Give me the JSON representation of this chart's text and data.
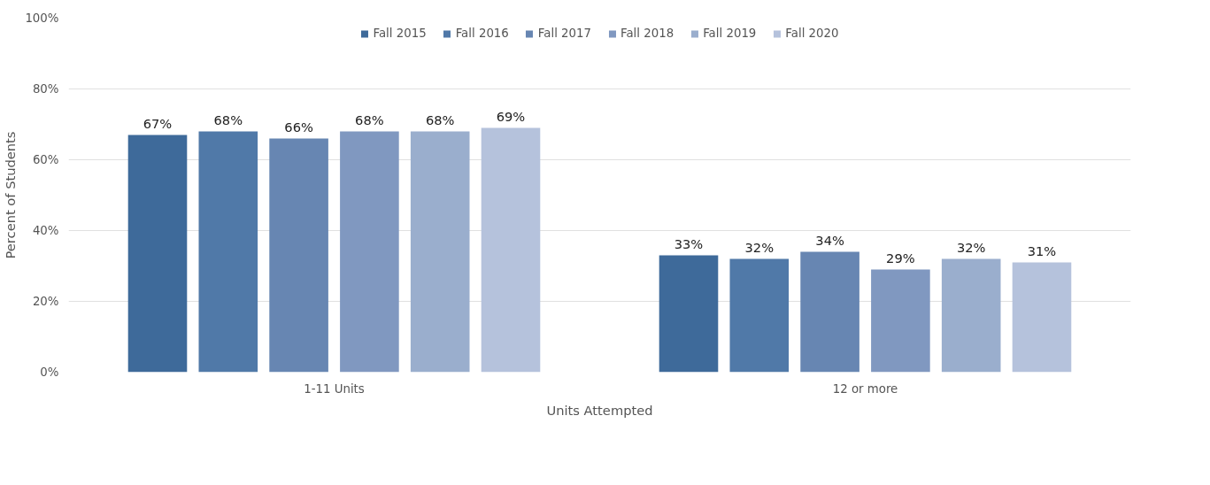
{
  "chart_data": {
    "type": "bar",
    "xlabel": "Units Attempted",
    "ylabel": "Percent of Students",
    "categories": [
      "1-11 Units",
      "12 or more"
    ],
    "series": [
      {
        "name": "Fall 2015",
        "color": "#3e6a9a",
        "values": [
          67,
          33
        ],
        "value_labels": [
          "67%",
          "33%"
        ]
      },
      {
        "name": "Fall 2016",
        "color": "#5079a8",
        "values": [
          68,
          32
        ],
        "value_labels": [
          "68%",
          "32%"
        ]
      },
      {
        "name": "Fall 2017",
        "color": "#6786b2",
        "values": [
          66,
          34
        ],
        "value_labels": [
          "66%",
          "34%"
        ]
      },
      {
        "name": "Fall 2018",
        "color": "#8098c0",
        "values": [
          68,
          29
        ],
        "value_labels": [
          "68%",
          "29%"
        ]
      },
      {
        "name": "Fall 2019",
        "color": "#9aaecd",
        "values": [
          68,
          32
        ],
        "value_labels": [
          "68%",
          "32%"
        ]
      },
      {
        "name": "Fall 2020",
        "color": "#b5c2dc",
        "values": [
          69,
          31
        ],
        "value_labels": [
          "69%",
          "31%"
        ]
      }
    ],
    "ylim": [
      0,
      100
    ],
    "yticks": [
      {
        "value": 0,
        "label": "0%"
      },
      {
        "value": 20,
        "label": "20%"
      },
      {
        "value": 40,
        "label": "40%"
      },
      {
        "value": 60,
        "label": "60%"
      },
      {
        "value": 80,
        "label": "80%"
      },
      {
        "value": 100,
        "label": "100%"
      }
    ],
    "grid": "y",
    "legend": "top"
  }
}
